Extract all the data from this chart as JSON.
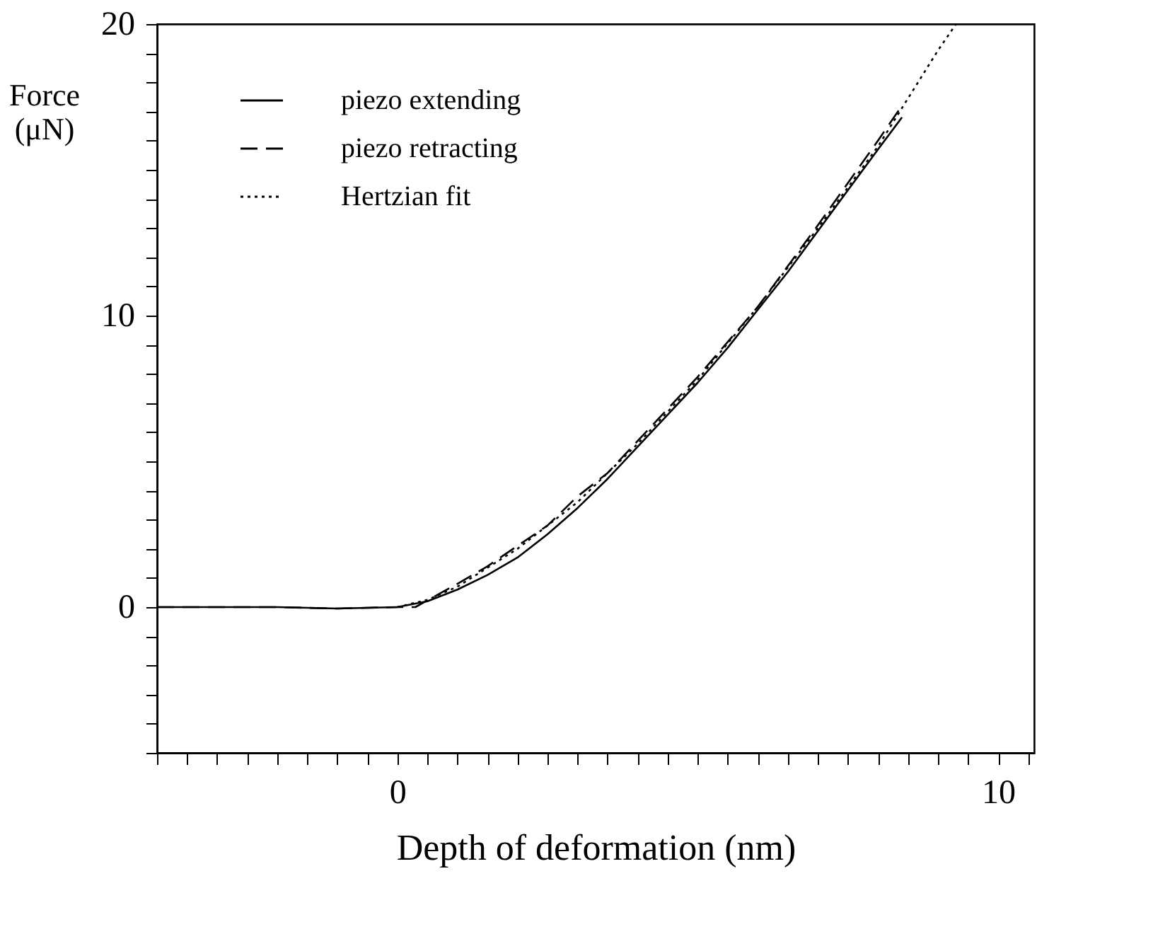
{
  "chart_data": {
    "type": "line",
    "xlabel": "Depth of deformation (nm)",
    "ylabel": "Force (μN)",
    "xlim": [
      -4,
      10.6
    ],
    "ylim": [
      -5,
      20
    ],
    "xticks": [
      {
        "value": -4,
        "label": null
      },
      {
        "value": -3.5,
        "label": null
      },
      {
        "value": -3,
        "label": null
      },
      {
        "value": -2.5,
        "label": null
      },
      {
        "value": -2,
        "label": null
      },
      {
        "value": -1.5,
        "label": null
      },
      {
        "value": -1,
        "label": null
      },
      {
        "value": -0.5,
        "label": null
      },
      0,
      {
        "value": 0.5,
        "label": null
      },
      {
        "value": 1,
        "label": null
      },
      {
        "value": 1.5,
        "label": null
      },
      {
        "value": 2,
        "label": null
      },
      {
        "value": 2.5,
        "label": null
      },
      {
        "value": 3,
        "label": null
      },
      {
        "value": 3.5,
        "label": null
      },
      {
        "value": 4,
        "label": null
      },
      {
        "value": 4.5,
        "label": null
      },
      {
        "value": 5,
        "label": null
      },
      {
        "value": 5.5,
        "label": null
      },
      {
        "value": 6,
        "label": null
      },
      {
        "value": 6.5,
        "label": null
      },
      {
        "value": 7,
        "label": null
      },
      {
        "value": 7.5,
        "label": null
      },
      {
        "value": 8,
        "label": null
      },
      {
        "value": 8.5,
        "label": null
      },
      {
        "value": 9,
        "label": null
      },
      {
        "value": 9.5,
        "label": null
      },
      10,
      {
        "value": 10.5,
        "label": null
      }
    ],
    "yticks": [
      {
        "value": -5,
        "label": null
      },
      {
        "value": -4,
        "label": null
      },
      {
        "value": -3,
        "label": null
      },
      {
        "value": -2,
        "label": null
      },
      {
        "value": -1,
        "label": null
      },
      0,
      {
        "value": 1,
        "label": null
      },
      {
        "value": 2,
        "label": null
      },
      {
        "value": 3,
        "label": null
      },
      {
        "value": 4,
        "label": null
      },
      {
        "value": 5,
        "label": null
      },
      {
        "value": 6,
        "label": null
      },
      {
        "value": 7,
        "label": null
      },
      {
        "value": 8,
        "label": null
      },
      {
        "value": 9,
        "label": null
      },
      10,
      {
        "value": 11,
        "label": null
      },
      {
        "value": 12,
        "label": null
      },
      {
        "value": 13,
        "label": null
      },
      {
        "value": 14,
        "label": null
      },
      {
        "value": 15,
        "label": null
      },
      {
        "value": 16,
        "label": null
      },
      {
        "value": 17,
        "label": null
      },
      {
        "value": 18,
        "label": null
      },
      {
        "value": 19,
        "label": null
      },
      20
    ],
    "grid": false,
    "legend": "top left",
    "marker": "none",
    "series": [
      {
        "name": "piezo extending",
        "color": "#000000",
        "line_style": "solid",
        "x": [
          -4,
          -2,
          -1,
          0,
          0.5,
          1,
          1.5,
          2,
          2.5,
          3,
          3.5,
          4,
          4.5,
          5,
          5.5,
          6,
          6.5,
          7,
          7.5,
          8,
          8.4
        ],
        "values": [
          0,
          0,
          -0.05,
          0,
          0.2,
          0.6,
          1.1,
          1.7,
          2.5,
          3.4,
          4.4,
          5.5,
          6.6,
          7.7,
          8.9,
          10.2,
          11.5,
          12.9,
          14.3,
          15.7,
          16.8
        ]
      },
      {
        "name": "piezo retracting",
        "color": "#000000",
        "line_style": "dashed",
        "x": [
          -4,
          -2,
          -1,
          0,
          0.3,
          1,
          1.5,
          2,
          2.5,
          3,
          3.5,
          4,
          5,
          6,
          7,
          8,
          8.4
        ],
        "values": [
          0,
          0,
          -0.05,
          0,
          0,
          0.8,
          1.4,
          2.1,
          2.8,
          3.8,
          4.6,
          5.7,
          7.9,
          10.3,
          13.1,
          16.0,
          17.2
        ]
      },
      {
        "name": "Hertzian fit",
        "color": "#000000",
        "line_style": "dotted",
        "x": [
          0,
          0.5,
          1,
          2,
          3,
          4,
          5,
          6,
          7,
          8,
          9,
          9.3
        ],
        "values": [
          0,
          0.25,
          0.7,
          2.0,
          3.6,
          5.6,
          7.8,
          10.3,
          13.0,
          15.8,
          19.1,
          20
        ]
      }
    ]
  }
}
